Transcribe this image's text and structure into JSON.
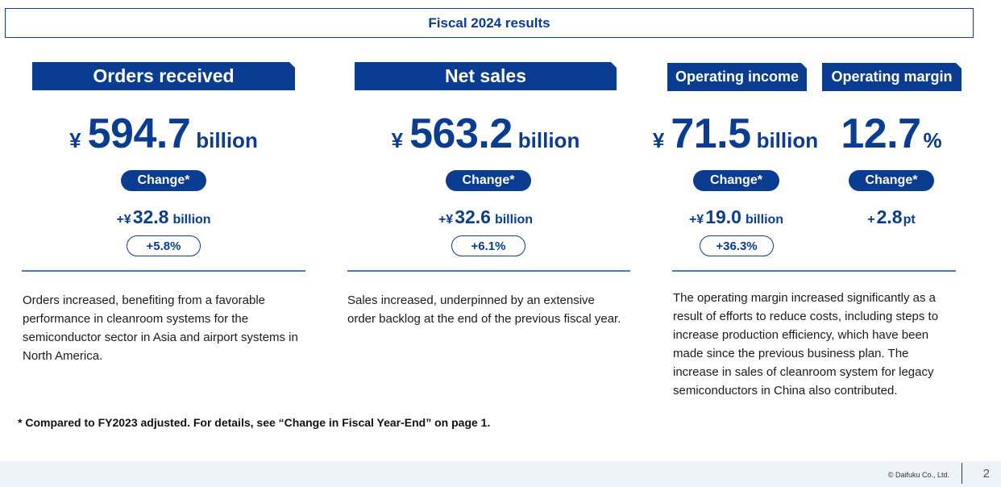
{
  "title": "Fiscal 2024 results",
  "columns": [
    {
      "heading": "Orders received",
      "currency": "¥",
      "value": "594.7",
      "unit": "billion",
      "change_label": "Change*",
      "delta_sign": "+¥",
      "delta_value": "32.8",
      "delta_unit": "billion",
      "delta_pct": "+5.8%",
      "description": "Orders increased, benefiting from a favorable performance in cleanroom systems for the semiconductor sector in Asia and airport systems in North America."
    },
    {
      "heading": "Net sales",
      "currency": "¥",
      "value": "563.2",
      "unit": "billion",
      "change_label": "Change*",
      "delta_sign": "+¥",
      "delta_value": "32.6",
      "delta_unit": "billion",
      "delta_pct": "+6.1%",
      "description": "Sales increased, underpinned by an extensive order backlog at the end of the previous fiscal year."
    },
    {
      "heading": "Operating income",
      "currency": "¥",
      "value": "71.5",
      "unit": "billion",
      "change_label": "Change*",
      "delta_sign": "+¥",
      "delta_value": "19.0",
      "delta_unit": "billion",
      "delta_pct": "+36.3%",
      "description": "The operating margin increased significantly as a result of efforts to reduce costs, including steps to increase production efficiency, which have been made since the previous business plan. The increase in sales of cleanroom system for legacy semiconductors in China also contributed."
    },
    {
      "heading": "Operating margin",
      "value": "12.7",
      "unit": "%",
      "change_label": "Change*",
      "delta_sign": "+",
      "delta_value": "2.8",
      "delta_unit": "pt"
    }
  ],
  "footnote": "* Compared to FY2023 adjusted. For details, see “Change in Fiscal Year-End” on page 1.",
  "footer": {
    "copyright": "© Daifuku Co., Ltd.",
    "page": "2"
  }
}
